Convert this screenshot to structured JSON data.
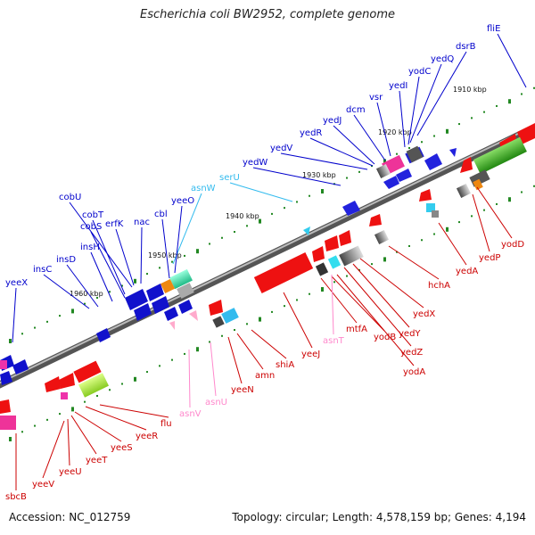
{
  "title": "Escherichia coli BW2952, complete genome",
  "footer": {
    "accession": "Accession: NC_012759",
    "summary": "Topology: circular; Length: 4,578,159 bp; Genes: 4,194"
  },
  "colors": {
    "forward_gene": "#0000ee",
    "reverse_gene": "#ee0000",
    "trna": "#33ccee",
    "trna_label": "#ff88cc",
    "backbone": "#777777",
    "tick": "#228822"
  },
  "scale_labels": [
    "1910 kbp",
    "1920 kbp",
    "1930 kbp",
    "1940 kbp",
    "1950 kbp",
    "1960 kbp"
  ],
  "upper_labels": [
    {
      "text": "fliE",
      "color": "#0000cc"
    },
    {
      "text": "dsrB",
      "color": "#0000cc"
    },
    {
      "text": "yedQ",
      "color": "#0000cc"
    },
    {
      "text": "yodC",
      "color": "#0000cc"
    },
    {
      "text": "yedI",
      "color": "#0000cc"
    },
    {
      "text": "vsr",
      "color": "#0000cc"
    },
    {
      "text": "dcm",
      "color": "#0000cc"
    },
    {
      "text": "yedJ",
      "color": "#0000cc"
    },
    {
      "text": "yedR",
      "color": "#0000cc"
    },
    {
      "text": "yedV",
      "color": "#0000cc"
    },
    {
      "text": "yedW",
      "color": "#0000cc"
    },
    {
      "text": "serU",
      "color": "#33bbee"
    },
    {
      "text": "asnW",
      "color": "#33bbee"
    },
    {
      "text": "yeeO",
      "color": "#0000cc"
    },
    {
      "text": "cbl",
      "color": "#0000cc"
    },
    {
      "text": "nac",
      "color": "#0000cc"
    },
    {
      "text": "erfK",
      "color": "#0000cc"
    },
    {
      "text": "cobU",
      "color": "#0000cc"
    },
    {
      "text": "cobT",
      "color": "#0000cc"
    },
    {
      "text": "cobS",
      "color": "#0000cc"
    },
    {
      "text": "insH",
      "color": "#0000cc"
    },
    {
      "text": "insD",
      "color": "#0000cc"
    },
    {
      "text": "insC",
      "color": "#0000cc"
    },
    {
      "text": "yeeX",
      "color": "#0000cc"
    }
  ],
  "lower_labels": [
    {
      "text": "yodD",
      "color": "#cc0000"
    },
    {
      "text": "yedP",
      "color": "#cc0000"
    },
    {
      "text": "yedA",
      "color": "#cc0000"
    },
    {
      "text": "hchA",
      "color": "#cc0000"
    },
    {
      "text": "yedX",
      "color": "#cc0000"
    },
    {
      "text": "yedY",
      "color": "#cc0000"
    },
    {
      "text": "yedZ",
      "color": "#cc0000"
    },
    {
      "text": "yodA",
      "color": "#cc0000"
    },
    {
      "text": "yodB",
      "color": "#cc0000"
    },
    {
      "text": "mtfA",
      "color": "#cc0000"
    },
    {
      "text": "asnT",
      "color": "#ff88cc"
    },
    {
      "text": "yeeJ",
      "color": "#cc0000"
    },
    {
      "text": "shiA",
      "color": "#cc0000"
    },
    {
      "text": "amn",
      "color": "#cc0000"
    },
    {
      "text": "yeeN",
      "color": "#cc0000"
    },
    {
      "text": "asnU",
      "color": "#ff88cc"
    },
    {
      "text": "asnV",
      "color": "#ff88cc"
    },
    {
      "text": "flu",
      "color": "#cc0000"
    },
    {
      "text": "yeeR",
      "color": "#cc0000"
    },
    {
      "text": "yeeS",
      "color": "#cc0000"
    },
    {
      "text": "yeeT",
      "color": "#cc0000"
    },
    {
      "text": "yeeU",
      "color": "#cc0000"
    },
    {
      "text": "yeeV",
      "color": "#cc0000"
    },
    {
      "text": "sbcB",
      "color": "#cc0000"
    }
  ]
}
